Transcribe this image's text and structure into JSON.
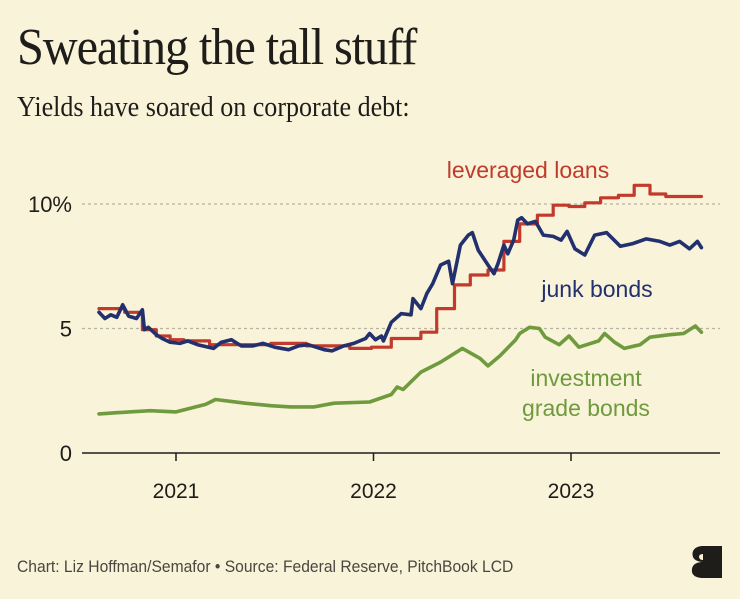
{
  "header": {
    "title": "Sweating the tall stuff",
    "subtitle": "Yields have soared on corporate debt:"
  },
  "footer": {
    "credit": "Chart: Liz Hoffman/Semafor • Source: Federal Reserve, PitchBook LCD",
    "logo_icon": "semafor-s-logo-icon"
  },
  "colors": {
    "background": "#f8f3d9",
    "leveraged_loans": "#c23a2b",
    "junk_bonds": "#22306e",
    "investment_grade": "#6f9a3e",
    "gridline": "#b7b3a2",
    "axis": "#1f1d1a"
  },
  "chart_data": {
    "type": "line",
    "title": "Sweating the tall stuff",
    "subtitle": "Yields have soared on corporate debt:",
    "xlabel": "",
    "ylabel": "",
    "x_unit": "year (decimal)",
    "xlim": [
      2020.53,
      2023.76
    ],
    "ylim": [
      0,
      11
    ],
    "yticks": [
      {
        "value": 0,
        "label": "0"
      },
      {
        "value": 5,
        "label": "5"
      },
      {
        "value": 10,
        "label": "10%"
      }
    ],
    "xticks": [
      {
        "value": 2021,
        "label": "2021"
      },
      {
        "value": 2022,
        "label": "2022"
      },
      {
        "value": 2023,
        "label": "2023"
      }
    ],
    "grid": "dotted horizontal at 5 and 10",
    "legend": "direct labels",
    "series": [
      {
        "name": "leveraged loans",
        "label_lines": [
          "leveraged loans"
        ],
        "style": "step",
        "color": "#c23a2b",
        "points": [
          [
            2020.61,
            5.8
          ],
          [
            2020.74,
            5.65
          ],
          [
            2020.83,
            4.95
          ],
          [
            2020.9,
            4.7
          ],
          [
            2020.97,
            4.55
          ],
          [
            2021.04,
            4.5
          ],
          [
            2021.17,
            4.35
          ],
          [
            2021.48,
            4.4
          ],
          [
            2021.66,
            4.3
          ],
          [
            2021.88,
            4.2
          ],
          [
            2021.99,
            4.25
          ],
          [
            2022.09,
            4.6
          ],
          [
            2022.24,
            4.85
          ],
          [
            2022.32,
            5.8
          ],
          [
            2022.41,
            6.75
          ],
          [
            2022.49,
            7.15
          ],
          [
            2022.58,
            7.35
          ],
          [
            2022.66,
            8.5
          ],
          [
            2022.74,
            9.2
          ],
          [
            2022.83,
            9.55
          ],
          [
            2022.91,
            9.95
          ],
          [
            2022.99,
            9.9
          ],
          [
            2023.07,
            10.05
          ],
          [
            2023.15,
            10.25
          ],
          [
            2023.24,
            10.35
          ],
          [
            2023.32,
            10.75
          ],
          [
            2023.4,
            10.4
          ],
          [
            2023.48,
            10.3
          ],
          [
            2023.66,
            10.3
          ]
        ]
      },
      {
        "name": "junk bonds",
        "label_lines": [
          "junk bonds"
        ],
        "style": "line",
        "color": "#22306e",
        "points": [
          [
            2020.61,
            5.65
          ],
          [
            2020.64,
            5.4
          ],
          [
            2020.67,
            5.55
          ],
          [
            2020.7,
            5.45
          ],
          [
            2020.73,
            5.95
          ],
          [
            2020.76,
            5.5
          ],
          [
            2020.8,
            5.4
          ],
          [
            2020.83,
            5.75
          ],
          [
            2020.84,
            4.95
          ],
          [
            2020.86,
            5.05
          ],
          [
            2020.9,
            4.75
          ],
          [
            2020.93,
            4.6
          ],
          [
            2020.97,
            4.45
          ],
          [
            2021.02,
            4.4
          ],
          [
            2021.06,
            4.5
          ],
          [
            2021.11,
            4.35
          ],
          [
            2021.19,
            4.2
          ],
          [
            2021.23,
            4.45
          ],
          [
            2021.28,
            4.55
          ],
          [
            2021.33,
            4.3
          ],
          [
            2021.39,
            4.3
          ],
          [
            2021.44,
            4.4
          ],
          [
            2021.5,
            4.25
          ],
          [
            2021.57,
            4.15
          ],
          [
            2021.62,
            4.3
          ],
          [
            2021.67,
            4.35
          ],
          [
            2021.75,
            4.15
          ],
          [
            2021.79,
            4.1
          ],
          [
            2021.85,
            4.3
          ],
          [
            2021.9,
            4.4
          ],
          [
            2021.96,
            4.6
          ],
          [
            2021.98,
            4.8
          ],
          [
            2022.01,
            4.55
          ],
          [
            2022.04,
            4.7
          ],
          [
            2022.05,
            4.5
          ],
          [
            2022.09,
            5.25
          ],
          [
            2022.14,
            5.6
          ],
          [
            2022.19,
            5.55
          ],
          [
            2022.2,
            6.2
          ],
          [
            2022.24,
            5.8
          ],
          [
            2022.27,
            6.4
          ],
          [
            2022.3,
            6.8
          ],
          [
            2022.34,
            7.55
          ],
          [
            2022.38,
            7.7
          ],
          [
            2022.4,
            6.8
          ],
          [
            2022.44,
            8.35
          ],
          [
            2022.48,
            8.75
          ],
          [
            2022.5,
            8.85
          ],
          [
            2022.53,
            8.15
          ],
          [
            2022.58,
            7.55
          ],
          [
            2022.61,
            7.2
          ],
          [
            2022.63,
            7.6
          ],
          [
            2022.66,
            8.35
          ],
          [
            2022.68,
            8.0
          ],
          [
            2022.71,
            8.55
          ],
          [
            2022.73,
            9.35
          ],
          [
            2022.75,
            9.45
          ],
          [
            2022.78,
            9.2
          ],
          [
            2022.82,
            9.3
          ],
          [
            2022.86,
            8.75
          ],
          [
            2022.91,
            8.7
          ],
          [
            2022.95,
            8.55
          ],
          [
            2022.98,
            8.9
          ],
          [
            2023.02,
            8.2
          ],
          [
            2023.07,
            7.95
          ],
          [
            2023.12,
            8.75
          ],
          [
            2023.18,
            8.85
          ],
          [
            2023.25,
            8.3
          ],
          [
            2023.31,
            8.4
          ],
          [
            2023.38,
            8.6
          ],
          [
            2023.45,
            8.5
          ],
          [
            2023.5,
            8.35
          ],
          [
            2023.55,
            8.5
          ],
          [
            2023.6,
            8.2
          ],
          [
            2023.64,
            8.5
          ],
          [
            2023.66,
            8.25
          ]
        ]
      },
      {
        "name": "investment grade bonds",
        "label_lines": [
          "investment",
          "grade bonds"
        ],
        "style": "line",
        "color": "#6f9a3e",
        "points": [
          [
            2020.61,
            1.57
          ],
          [
            2020.7,
            1.62
          ],
          [
            2020.87,
            1.7
          ],
          [
            2021.0,
            1.65
          ],
          [
            2021.05,
            1.75
          ],
          [
            2021.15,
            1.95
          ],
          [
            2021.2,
            2.15
          ],
          [
            2021.35,
            2.0
          ],
          [
            2021.48,
            1.9
          ],
          [
            2021.58,
            1.85
          ],
          [
            2021.7,
            1.85
          ],
          [
            2021.8,
            2.0
          ],
          [
            2021.98,
            2.05
          ],
          [
            2022.09,
            2.35
          ],
          [
            2022.12,
            2.65
          ],
          [
            2022.15,
            2.55
          ],
          [
            2022.24,
            3.25
          ],
          [
            2022.34,
            3.65
          ],
          [
            2022.44,
            4.15
          ],
          [
            2022.45,
            4.2
          ],
          [
            2022.54,
            3.8
          ],
          [
            2022.58,
            3.5
          ],
          [
            2022.64,
            3.9
          ],
          [
            2022.72,
            4.55
          ],
          [
            2022.74,
            4.8
          ],
          [
            2022.79,
            5.05
          ],
          [
            2022.84,
            5.0
          ],
          [
            2022.87,
            4.65
          ],
          [
            2022.94,
            4.35
          ],
          [
            2022.99,
            4.7
          ],
          [
            2023.04,
            4.25
          ],
          [
            2023.14,
            4.5
          ],
          [
            2023.17,
            4.8
          ],
          [
            2023.22,
            4.45
          ],
          [
            2023.27,
            4.2
          ],
          [
            2023.35,
            4.35
          ],
          [
            2023.4,
            4.65
          ],
          [
            2023.5,
            4.75
          ],
          [
            2023.57,
            4.8
          ],
          [
            2023.63,
            5.1
          ],
          [
            2023.66,
            4.85
          ]
        ]
      }
    ]
  }
}
